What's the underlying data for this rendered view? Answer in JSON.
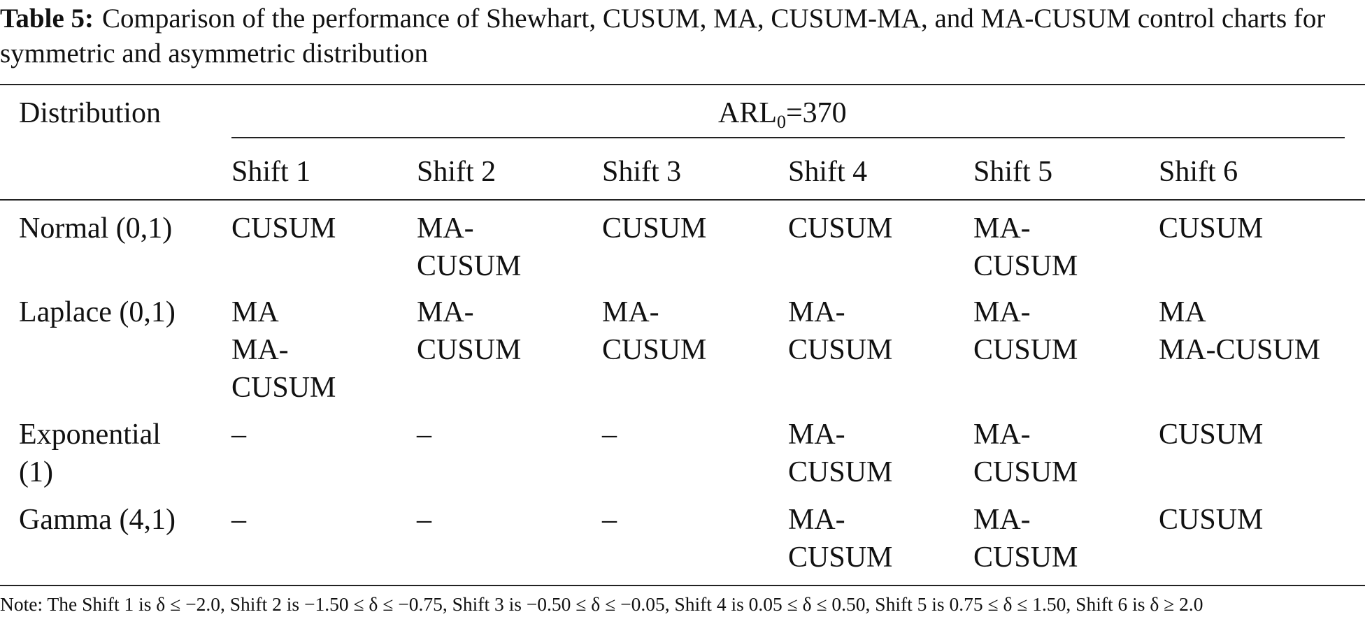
{
  "caption": {
    "label": "Table 5:",
    "text": "Comparison of the performance of Shewhart, CUSUM, MA, CUSUM-MA, and MA-CUSUM control charts for symmetric and asymmetric distribution"
  },
  "table": {
    "header": {
      "first": "Distribution",
      "group": {
        "main": "ARL",
        "sub": "0",
        "rest": "=370"
      },
      "columns": [
        "Shift 1",
        "Shift 2",
        "Shift 3",
        "Shift 4",
        "Shift 5",
        "Shift 6"
      ]
    },
    "rows": [
      {
        "label": [
          "Normal (0,1)"
        ],
        "cells": [
          [
            "CUSUM"
          ],
          [
            "MA-",
            "CUSUM"
          ],
          [
            "CUSUM"
          ],
          [
            "CUSUM"
          ],
          [
            "MA-",
            "CUSUM"
          ],
          [
            "CUSUM"
          ]
        ]
      },
      {
        "label": [
          "Laplace (0,1)"
        ],
        "cells": [
          [
            "MA",
            "MA-",
            "CUSUM"
          ],
          [
            "MA-",
            "CUSUM"
          ],
          [
            "MA-",
            "CUSUM"
          ],
          [
            "MA-",
            "CUSUM"
          ],
          [
            "MA-",
            "CUSUM"
          ],
          [
            "MA",
            "MA-CUSUM"
          ]
        ]
      },
      {
        "label": [
          "Exponential",
          "(1)"
        ],
        "cells": [
          [
            "–"
          ],
          [
            "–"
          ],
          [
            "–"
          ],
          [
            "MA-",
            "CUSUM"
          ],
          [
            "MA-",
            "CUSUM"
          ],
          [
            "CUSUM"
          ]
        ]
      },
      {
        "label": [
          "Gamma (4,1)"
        ],
        "cells": [
          [
            "–"
          ],
          [
            "–"
          ],
          [
            "–"
          ],
          [
            "MA-",
            "CUSUM"
          ],
          [
            "MA-",
            "CUSUM"
          ],
          [
            "CUSUM"
          ]
        ]
      }
    ]
  },
  "note": "Note: The Shift 1 is δ ≤ −2.0, Shift 2 is −1.50 ≤ δ ≤ −0.75, Shift 3 is −0.50 ≤ δ ≤ −0.05, Shift 4 is 0.05 ≤ δ ≤ 0.50, Shift 5 is 0.75 ≤ δ ≤ 1.50, Shift 6 is δ ≥ 2.0"
}
